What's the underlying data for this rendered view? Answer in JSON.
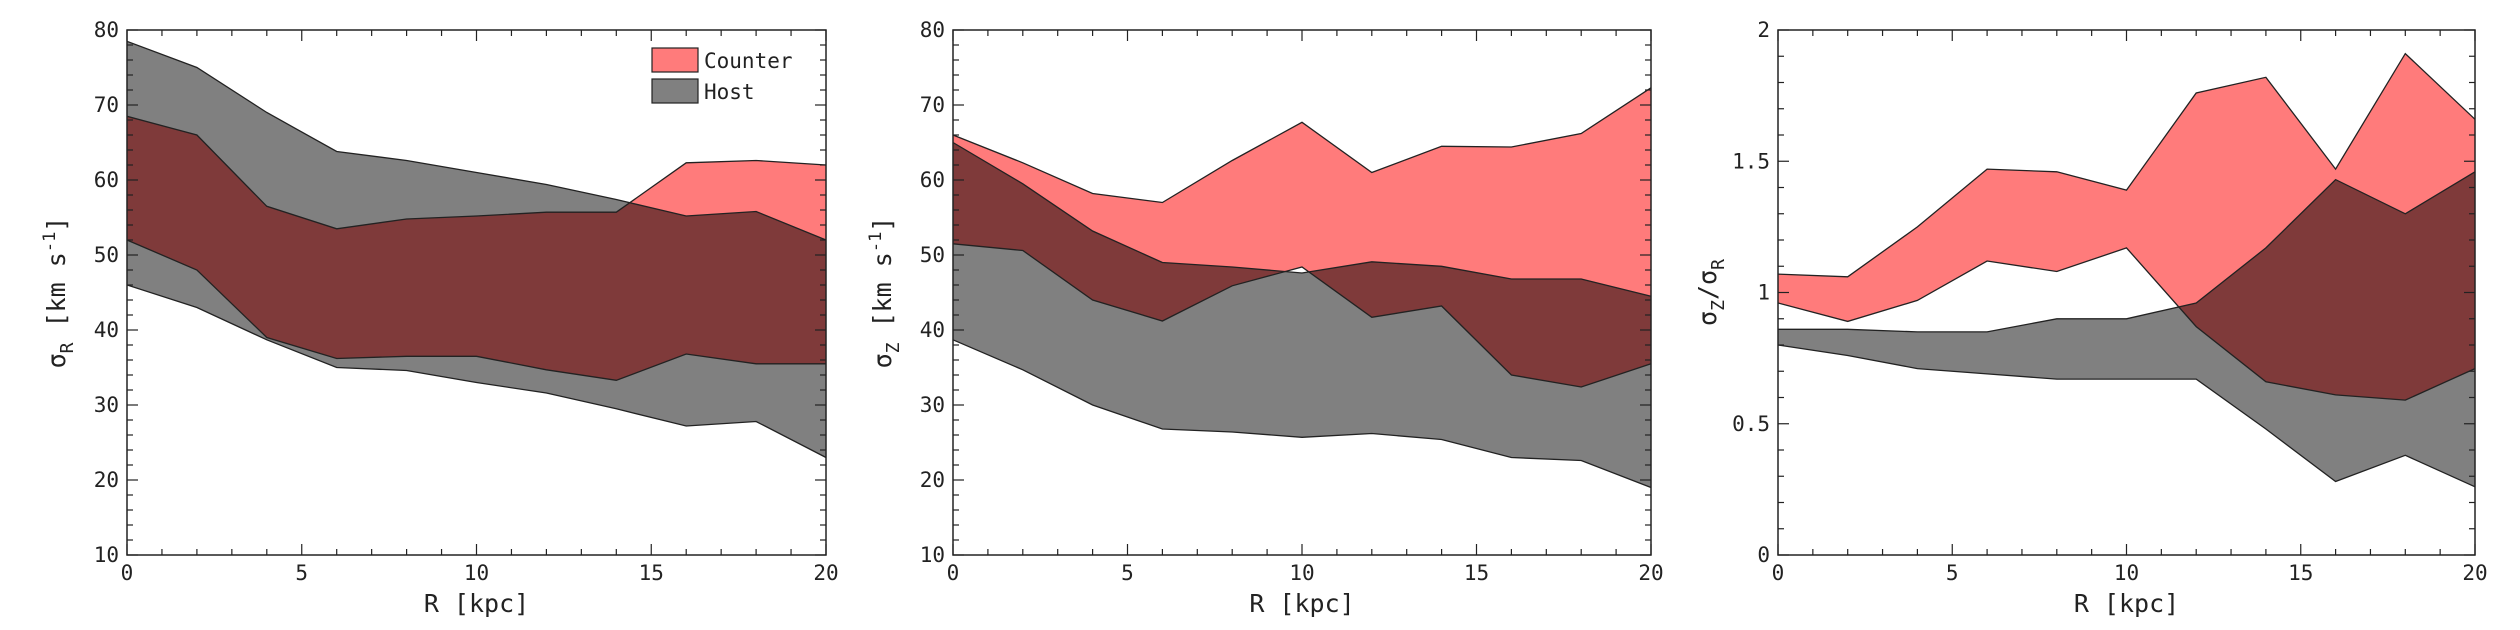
{
  "legend": [
    {
      "label": "Counter",
      "color": "#ff7b7b"
    },
    {
      "label": "Host",
      "color": "#808080"
    }
  ],
  "colors": {
    "counter": "#ff7b7b",
    "host": "#808080",
    "overlap": "#7f3a3a",
    "edge": "#222222"
  },
  "chart_data": [
    {
      "type": "area",
      "xlabel": "R [kpc]",
      "ylabel": {
        "base": "σ",
        "sub": "R",
        "unit_open": " [km s",
        "sup": "-1",
        "unit_close": "]"
      },
      "xlim": [
        0,
        20
      ],
      "ylim": [
        10,
        80
      ],
      "xticks": [
        0,
        5,
        10,
        15,
        20
      ],
      "xtick_labels": [
        "0",
        "5",
        "10",
        "15",
        "20"
      ],
      "yticks": [
        10,
        20,
        30,
        40,
        50,
        60,
        70,
        80
      ],
      "ytick_labels": [
        "10",
        "20",
        "30",
        "40",
        "50",
        "60",
        "70",
        "80"
      ],
      "x": [
        0,
        2,
        4,
        6,
        8,
        10,
        12,
        14,
        16,
        18,
        20
      ],
      "series": [
        {
          "name": "Counter",
          "upper": [
            68.5,
            66.0,
            56.5,
            53.5,
            54.8,
            55.2,
            55.7,
            55.7,
            62.3,
            62.6,
            62.0
          ],
          "lower": [
            52.0,
            48.0,
            39.0,
            36.2,
            36.5,
            36.5,
            34.7,
            33.3,
            36.8,
            35.5,
            35.5
          ]
        },
        {
          "name": "Host",
          "upper": [
            78.5,
            75.0,
            69.0,
            63.8,
            62.6,
            61.0,
            59.4,
            57.4,
            55.2,
            55.8,
            52.0
          ],
          "lower": [
            46.0,
            43.0,
            38.7,
            35.0,
            34.6,
            33.0,
            31.6,
            29.5,
            27.2,
            27.8,
            23.0
          ]
        }
      ]
    },
    {
      "type": "area",
      "xlabel": "R [kpc]",
      "ylabel": {
        "base": "σ",
        "sub": "Z",
        "unit_open": " [km s",
        "sup": "-1",
        "unit_close": "]"
      },
      "xlim": [
        0,
        20
      ],
      "ylim": [
        10,
        80
      ],
      "xticks": [
        0,
        5,
        10,
        15,
        20
      ],
      "xtick_labels": [
        "0",
        "5",
        "10",
        "15",
        "20"
      ],
      "yticks": [
        10,
        20,
        30,
        40,
        50,
        60,
        70,
        80
      ],
      "ytick_labels": [
        "10",
        "20",
        "30",
        "40",
        "50",
        "60",
        "70",
        "80"
      ],
      "x": [
        0,
        2,
        4,
        6,
        8,
        10,
        12,
        14,
        16,
        18,
        20
      ],
      "series": [
        {
          "name": "Counter",
          "upper": [
            66.0,
            62.3,
            58.2,
            57.0,
            62.6,
            67.7,
            61.0,
            64.5,
            64.4,
            66.2,
            72.3
          ],
          "lower": [
            51.5,
            50.6,
            44.0,
            41.2,
            45.9,
            48.4,
            41.7,
            43.2,
            34.0,
            32.4,
            35.5
          ]
        },
        {
          "name": "Host",
          "upper": [
            65.0,
            59.5,
            53.2,
            49.0,
            48.4,
            47.6,
            49.1,
            48.5,
            46.8,
            46.8,
            44.5
          ],
          "lower": [
            38.7,
            34.7,
            30.0,
            26.8,
            26.4,
            25.7,
            26.2,
            25.4,
            23.0,
            22.6,
            19.0
          ]
        }
      ]
    },
    {
      "type": "area",
      "xlabel": "R [kpc]",
      "ylabel": {
        "base": "σ",
        "sub": "Z",
        "mid": "/σ",
        "sub2": "R"
      },
      "xlim": [
        0,
        20
      ],
      "ylim": [
        0,
        2
      ],
      "xticks": [
        0,
        5,
        10,
        15,
        20
      ],
      "xtick_labels": [
        "0",
        "5",
        "10",
        "15",
        "20"
      ],
      "yticks": [
        0,
        0.5,
        1,
        1.5,
        2
      ],
      "ytick_labels": [
        "0",
        "0.5",
        "1",
        "1.5",
        "2"
      ],
      "x": [
        0,
        2,
        4,
        6,
        8,
        10,
        12,
        14,
        16,
        18,
        20
      ],
      "series": [
        {
          "name": "Counter",
          "upper": [
            1.07,
            1.06,
            1.25,
            1.47,
            1.46,
            1.39,
            1.76,
            1.82,
            1.47,
            1.91,
            1.66
          ],
          "lower": [
            0.96,
            0.89,
            0.97,
            1.12,
            1.08,
            1.17,
            0.87,
            0.66,
            0.61,
            0.59,
            0.71
          ]
        },
        {
          "name": "Host",
          "upper": [
            0.86,
            0.86,
            0.85,
            0.85,
            0.9,
            0.9,
            0.96,
            1.17,
            1.43,
            1.3,
            1.46
          ],
          "lower": [
            0.8,
            0.76,
            0.71,
            0.69,
            0.67,
            0.67,
            0.67,
            0.48,
            0.28,
            0.38,
            0.26
          ]
        }
      ]
    }
  ]
}
